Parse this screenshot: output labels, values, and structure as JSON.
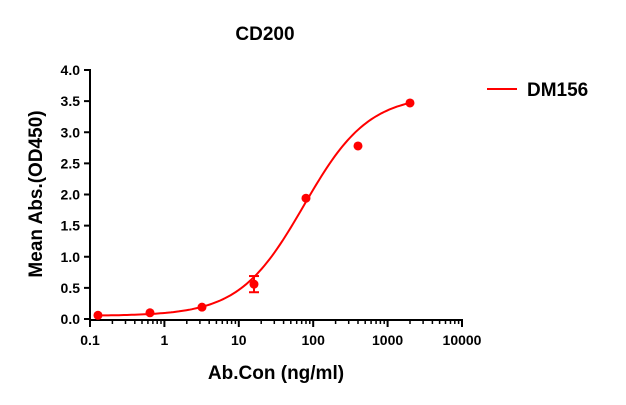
{
  "chart_data": {
    "type": "scatter",
    "title": "CD200",
    "xlabel": "Ab.Con (ng/ml)",
    "ylabel": "Mean Abs.(OD450)",
    "xscale": "log",
    "xlim": [
      0.1,
      10000
    ],
    "ylim": [
      0,
      4.0
    ],
    "x_ticks": [
      "0.1",
      "1",
      "10",
      "100",
      "1000",
      "10000"
    ],
    "y_ticks": [
      "0.0",
      "0.5",
      "1.0",
      "1.5",
      "2.0",
      "2.5",
      "3.0",
      "3.5",
      "4.0"
    ],
    "grid": false,
    "legend_position": "right",
    "color": "#ff0000",
    "series": [
      {
        "name": "DM156",
        "x": [
          0.128,
          0.64,
          3.2,
          16,
          80,
          400,
          2000
        ],
        "y": [
          0.06,
          0.1,
          0.19,
          0.56,
          1.94,
          2.78,
          3.47
        ],
        "error": [
          0,
          0,
          0,
          0.13,
          0,
          0,
          0
        ],
        "fit": "sigmoidal curve"
      }
    ]
  }
}
